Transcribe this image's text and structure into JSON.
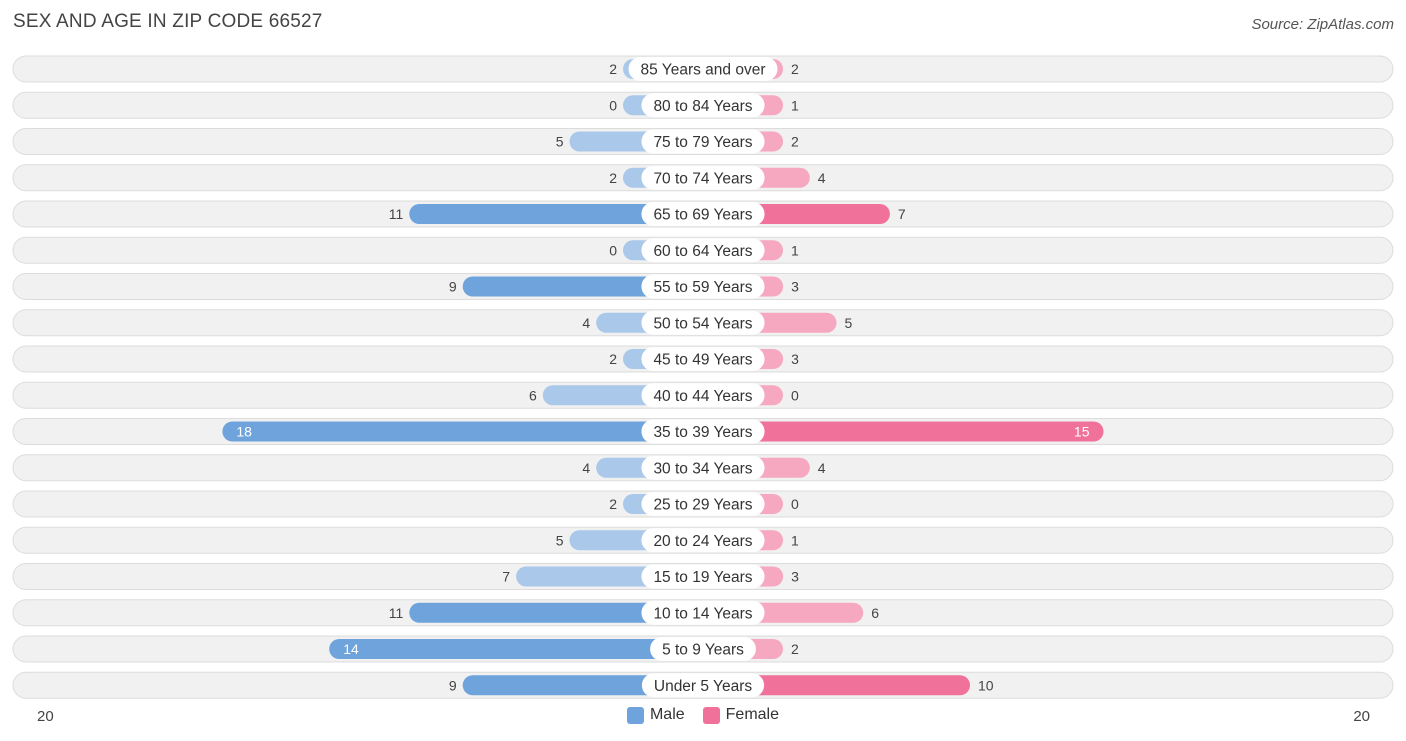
{
  "header": {
    "title": "SEX AND AGE IN ZIP CODE 66527",
    "source": "Source: ZipAtlas.com"
  },
  "axis": {
    "left_label": "20",
    "right_label": "20"
  },
  "legend": {
    "male_label": "Male",
    "female_label": "Female"
  },
  "colors": {
    "male_strong": "#6fa3dc",
    "male_light": "#a9c8ea",
    "female_strong": "#f07199",
    "female_light": "#f6a8c0",
    "row_bg": "#f1f1f1"
  },
  "chart_data": {
    "type": "bar",
    "orientation": "horizontal-diverging",
    "title": "SEX AND AGE IN ZIP CODE 66527",
    "xlim": [
      -20,
      20
    ],
    "legend_position": "bottom-center",
    "categories": [
      "85 Years and over",
      "80 to 84 Years",
      "75 to 79 Years",
      "70 to 74 Years",
      "65 to 69 Years",
      "60 to 64 Years",
      "55 to 59 Years",
      "50 to 54 Years",
      "45 to 49 Years",
      "40 to 44 Years",
      "35 to 39 Years",
      "30 to 34 Years",
      "25 to 29 Years",
      "20 to 24 Years",
      "15 to 19 Years",
      "10 to 14 Years",
      "5 to 9 Years",
      "Under 5 Years"
    ],
    "series": [
      {
        "name": "Male",
        "values": [
          2,
          0,
          5,
          2,
          11,
          0,
          9,
          4,
          2,
          6,
          18,
          4,
          2,
          5,
          7,
          11,
          14,
          9
        ]
      },
      {
        "name": "Female",
        "values": [
          2,
          1,
          2,
          4,
          7,
          1,
          3,
          5,
          3,
          0,
          15,
          4,
          0,
          1,
          3,
          6,
          2,
          10
        ]
      }
    ]
  }
}
